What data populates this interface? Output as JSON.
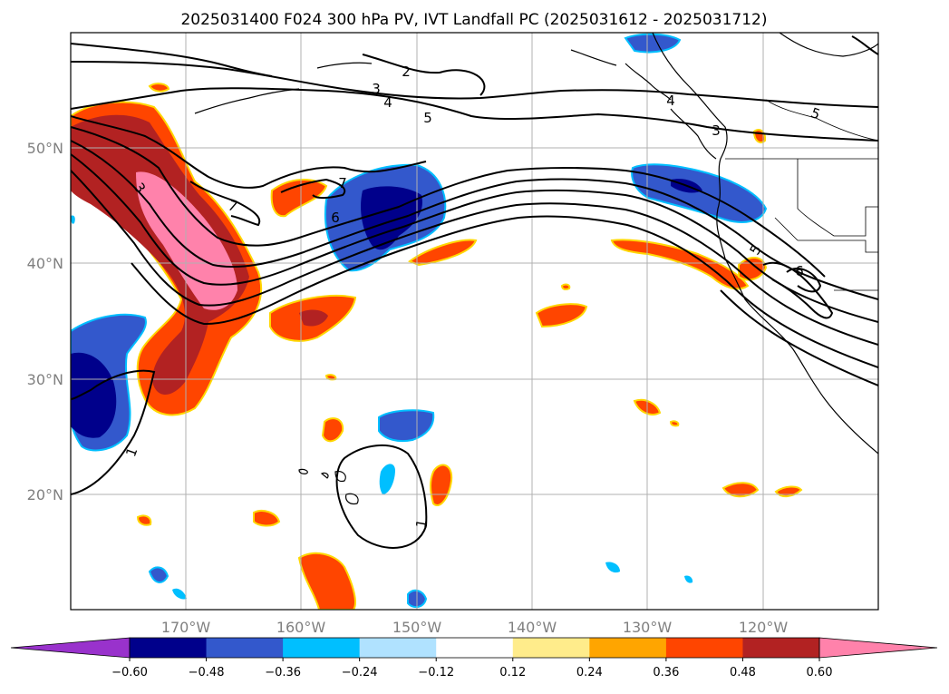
{
  "title": "2025031400 F024 300 hPa PV, IVT Landfall PC (2025031612 - 2025031712)",
  "map": {
    "projection": "PlateCarree",
    "lon_range": [
      -180,
      -110
    ],
    "lat_range": [
      10,
      60
    ],
    "lon_ticks": [
      {
        "value": -170,
        "label": "170°W"
      },
      {
        "value": -160,
        "label": "160°W"
      },
      {
        "value": -150,
        "label": "150°W"
      },
      {
        "value": -140,
        "label": "140°W"
      },
      {
        "value": -130,
        "label": "130°W"
      },
      {
        "value": -120,
        "label": "120°W"
      }
    ],
    "lat_ticks": [
      {
        "value": 20,
        "label": "20°N"
      },
      {
        "value": 30,
        "label": "30°N"
      },
      {
        "value": 40,
        "label": "40°N"
      },
      {
        "value": 50,
        "label": "50°N"
      }
    ],
    "gridlines": true,
    "coastlines": true
  },
  "colorbar": {
    "extend": "both",
    "levels": [
      -0.6,
      -0.48,
      -0.36,
      -0.24,
      -0.12,
      0.12,
      0.24,
      0.36,
      0.48,
      0.6
    ],
    "tick_labels": [
      "−0.60",
      "−0.48",
      "−0.36",
      "−0.24",
      "−0.12",
      "0.12",
      "0.24",
      "0.36",
      "0.48",
      "0.60"
    ],
    "colors": [
      "#9932cc",
      "#00008b",
      "#3358cc",
      "#00bfff",
      "#b0e2ff",
      "#ffffff",
      "#ffec8b",
      "#ffa500",
      "#ff4500",
      "#b22222",
      "#ff82ab"
    ]
  },
  "contours": {
    "variable": "300 hPa PV",
    "labels": [
      "1",
      "1",
      "2",
      "3",
      "3",
      "3",
      "4",
      "4",
      "5",
      "5",
      "5",
      "6",
      "6",
      "7",
      "7"
    ]
  }
}
